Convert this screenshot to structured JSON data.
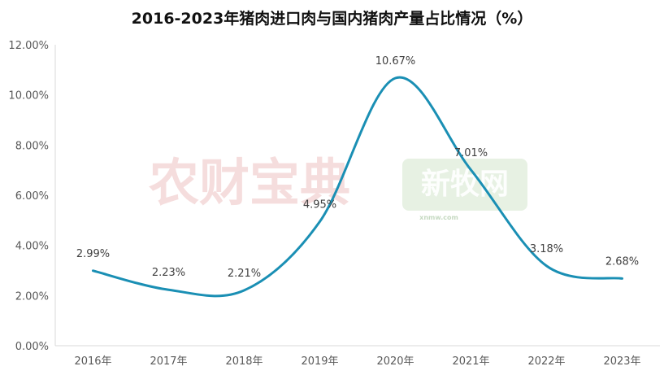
{
  "chart_data": {
    "type": "line",
    "title": "2016-2023年猪肉进口肉与国内猪肉产量占比情况（%）",
    "categories": [
      "2016年",
      "2017年",
      "2018年",
      "2019年",
      "2020年",
      "2021年",
      "2022年",
      "2023年"
    ],
    "series": [
      {
        "values": [
          2.99,
          2.23,
          2.21,
          4.95,
          10.67,
          7.01,
          3.18,
          2.68
        ],
        "labels": [
          "2.99%",
          "2.23%",
          "2.21%",
          "4.95%",
          "10.67%",
          "7.01%",
          "3.18%",
          "2.68%"
        ],
        "color": "#1a8fb4"
      }
    ],
    "y_ticks": [
      "0.00%",
      "2.00%",
      "4.00%",
      "6.00%",
      "8.00%",
      "10.00%",
      "12.00%"
    ],
    "ylim": [
      0,
      12
    ],
    "xlabel": "",
    "ylabel": "",
    "grid": false,
    "smooth": true
  },
  "watermarks": {
    "left_text": "农财宝典",
    "right_text": "新牧网",
    "right_sub": "xnmw.com"
  }
}
